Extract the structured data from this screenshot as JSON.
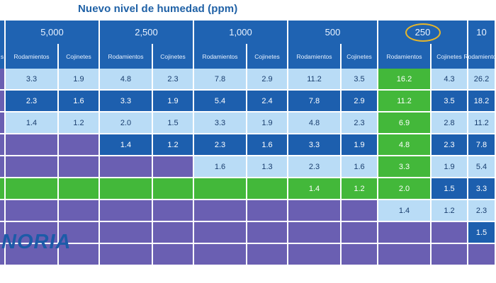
{
  "title": "Nuevo nivel de humedad (ppm)",
  "logo_text": "NORIA",
  "highlight_color": "#e6b62b",
  "levels": [
    "",
    "5,000",
    "2,500",
    "1,000",
    "500",
    "250",
    "10"
  ],
  "sublabels": [
    "s",
    "Rodamientos",
    "Cojinetes",
    "Rodamientos",
    "Cojinetes",
    "Rodamientos",
    "Cojinetes",
    "Rodamientos",
    "Cojinetes",
    "Rodamientos",
    "Cojinetes",
    "Rodamientos"
  ],
  "rows": [
    [
      "",
      "3.3",
      "1.9",
      "4.8",
      "2.3",
      "7.8",
      "2.9",
      "11.2",
      "3.5",
      "16.2",
      "4.3",
      "26.2"
    ],
    [
      "",
      "2.3",
      "1.6",
      "3.3",
      "1.9",
      "5.4",
      "2.4",
      "7.8",
      "2.9",
      "11.2",
      "3.5",
      "18.2"
    ],
    [
      "",
      "1.4",
      "1.2",
      "2.0",
      "1.5",
      "3.3",
      "1.9",
      "4.8",
      "2.3",
      "6.9",
      "2.8",
      "11.2"
    ],
    [
      "",
      "",
      "",
      "1.4",
      "1.2",
      "2.3",
      "1.6",
      "3.3",
      "1.9",
      "4.8",
      "2.3",
      "7.8"
    ],
    [
      "",
      "",
      "",
      "",
      "",
      "1.6",
      "1.3",
      "2.3",
      "1.6",
      "3.3",
      "1.9",
      "5.4"
    ],
    [
      "",
      "",
      "",
      "",
      "",
      "",
      "",
      "1.4",
      "1.2",
      "2.0",
      "1.5",
      "3.3"
    ],
    [
      "",
      "",
      "",
      "",
      "",
      "",
      "",
      "",
      "",
      "1.4",
      "1.2",
      "2.3"
    ],
    [
      "",
      "",
      "",
      "",
      "",
      "",
      "",
      "",
      "",
      "",
      "",
      "1.5"
    ],
    [
      "",
      "",
      "",
      "",
      "",
      "",
      "",
      "",
      "",
      "",
      "",
      ""
    ]
  ]
}
